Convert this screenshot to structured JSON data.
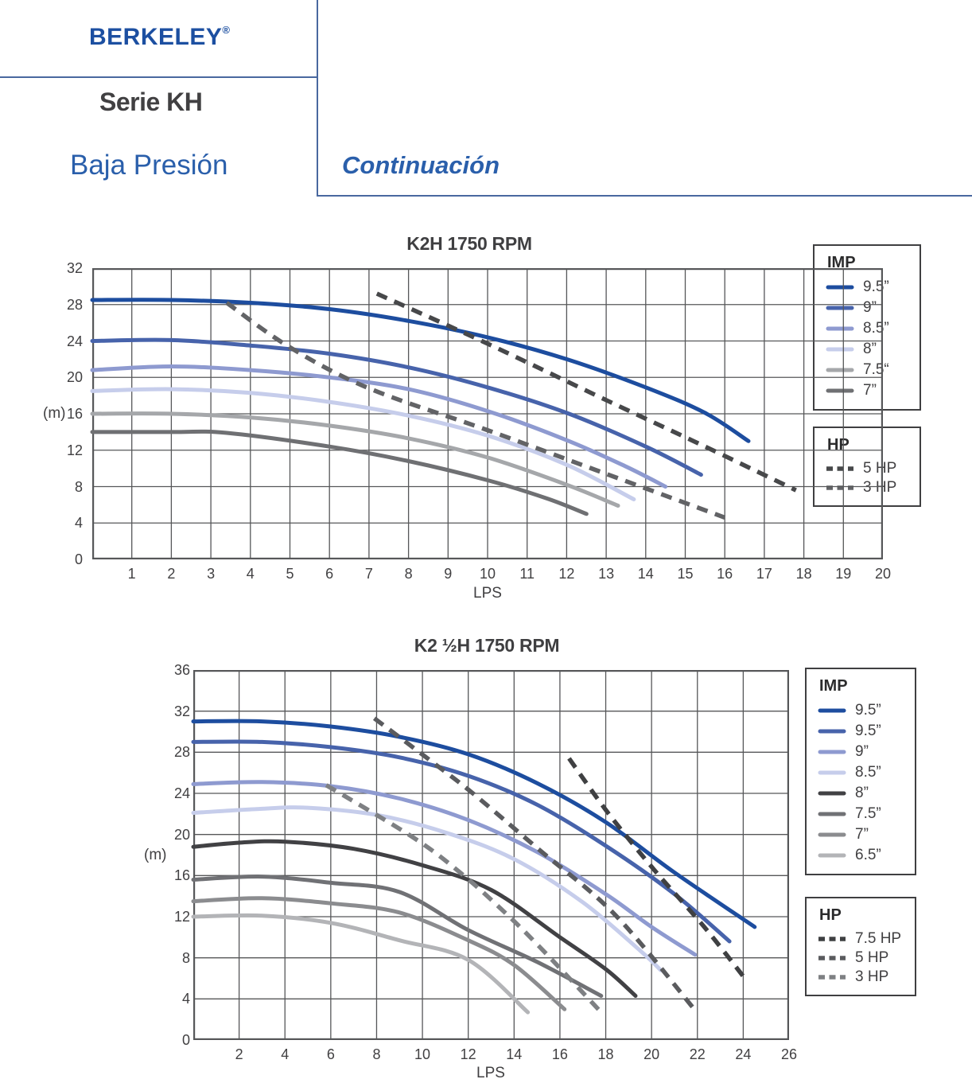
{
  "header": {
    "brand": "BERKELEY",
    "registered": "®",
    "series": "Serie KH",
    "subtitle": "Baja Presión",
    "continuation": "Continuación",
    "brand_color": "#1c4fa1",
    "rule_color": "#49689f"
  },
  "chart_data": [
    {
      "type": "line",
      "title": "K2H 1750 RPM",
      "xlabel": "LPS",
      "ylabel": "(m)",
      "xlim": [
        0,
        20
      ],
      "ylim": [
        0,
        32
      ],
      "x_ticks": [
        1,
        2,
        3,
        4,
        5,
        6,
        7,
        8,
        9,
        10,
        11,
        12,
        13,
        14,
        15,
        16,
        17,
        18,
        19,
        20
      ],
      "y_ticks": [
        0,
        4,
        8,
        12,
        16,
        20,
        24,
        28,
        32
      ],
      "y_grid_step": 4,
      "grid": true,
      "legend_imp_title": "IMP",
      "legend_hp_title": "HP",
      "legend_position": "right",
      "series": [
        {
          "name": "9.5”",
          "legend": "imp",
          "color": "#1d4d9f",
          "dashed": false,
          "points": [
            [
              0,
              28.5
            ],
            [
              2,
              28.5
            ],
            [
              4,
              28.2
            ],
            [
              6,
              27.5
            ],
            [
              8,
              26.2
            ],
            [
              10,
              24.4
            ],
            [
              12,
              22.0
            ],
            [
              14,
              18.9
            ],
            [
              15.5,
              16.1
            ],
            [
              16.6,
              13.0
            ]
          ]
        },
        {
          "name": "9”",
          "legend": "imp",
          "color": "#4763ab",
          "dashed": false,
          "points": [
            [
              0,
              24.0
            ],
            [
              2,
              24.1
            ],
            [
              4,
              23.5
            ],
            [
              6,
              22.6
            ],
            [
              8,
              21.1
            ],
            [
              10,
              18.9
            ],
            [
              12,
              16.1
            ],
            [
              14,
              12.4
            ],
            [
              15.4,
              9.3
            ]
          ]
        },
        {
          "name": "8.5”",
          "legend": "imp",
          "color": "#8e9ad0",
          "dashed": false,
          "points": [
            [
              0,
              20.8
            ],
            [
              2,
              21.2
            ],
            [
              4,
              20.8
            ],
            [
              6,
              20.0
            ],
            [
              8,
              18.7
            ],
            [
              10,
              16.3
            ],
            [
              12,
              13.1
            ],
            [
              13.5,
              10.2
            ],
            [
              14.5,
              8.0
            ]
          ]
        },
        {
          "name": "8”",
          "legend": "imp",
          "color": "#c6cdeb",
          "dashed": false,
          "points": [
            [
              0,
              18.5
            ],
            [
              2,
              18.7
            ],
            [
              4,
              18.3
            ],
            [
              6,
              17.3
            ],
            [
              8,
              15.8
            ],
            [
              10,
              13.6
            ],
            [
              12,
              10.4
            ],
            [
              13.7,
              6.6
            ]
          ]
        },
        {
          "name": "7.5“",
          "legend": "imp",
          "color": "#a5a7aa",
          "dashed": false,
          "points": [
            [
              0,
              16.0
            ],
            [
              2,
              16.0
            ],
            [
              4,
              15.6
            ],
            [
              6,
              14.7
            ],
            [
              8,
              13.3
            ],
            [
              10,
              11.2
            ],
            [
              12,
              8.2
            ],
            [
              13.3,
              5.9
            ]
          ]
        },
        {
          "name": "7”",
          "legend": "imp",
          "color": "#6f7073",
          "dashed": false,
          "points": [
            [
              0,
              14.0
            ],
            [
              2,
              14.0
            ],
            [
              3.4,
              13.9
            ],
            [
              6,
              12.4
            ],
            [
              8,
              10.8
            ],
            [
              10,
              8.7
            ],
            [
              11.5,
              6.7
            ],
            [
              12.5,
              5.0
            ]
          ]
        },
        {
          "name": "5 HP",
          "legend": "hp",
          "color": "#47484a",
          "dashed": true,
          "points": [
            [
              7.2,
              29.2
            ],
            [
              10,
              23.7
            ],
            [
              13,
              17.5
            ],
            [
              15.5,
              12.4
            ],
            [
              17.8,
              7.6
            ]
          ]
        },
        {
          "name": "3 HP",
          "legend": "hp",
          "color": "#626366",
          "dashed": true,
          "points": [
            [
              3.4,
              28.2
            ],
            [
              5,
              23.3
            ],
            [
              7,
              18.8
            ],
            [
              10,
              14.2
            ],
            [
              13,
              9.4
            ],
            [
              16,
              4.6
            ]
          ]
        }
      ]
    },
    {
      "type": "line",
      "title": "K2 ½H 1750 RPM",
      "xlabel": "LPS",
      "ylabel": "(m)",
      "xlim": [
        0,
        26
      ],
      "ylim": [
        0,
        36
      ],
      "x_ticks": [
        2,
        4,
        6,
        8,
        10,
        12,
        14,
        16,
        18,
        20,
        22,
        24,
        26
      ],
      "y_ticks": [
        0,
        4,
        8,
        12,
        16,
        20,
        24,
        28,
        32,
        36
      ],
      "y_grid_step": 4,
      "grid": true,
      "legend_imp_title": "IMP",
      "legend_hp_title": "HP",
      "legend_position": "right",
      "series": [
        {
          "name": "9.5”",
          "legend": "imp",
          "color": "#1d4d9f",
          "dashed": false,
          "points": [
            [
              0,
              31.0
            ],
            [
              3,
              31.0
            ],
            [
              6,
              30.5
            ],
            [
              9,
              29.5
            ],
            [
              12,
              27.8
            ],
            [
              15,
              25.0
            ],
            [
              18,
              21.2
            ],
            [
              21,
              16.3
            ],
            [
              24.5,
              11.0
            ]
          ]
        },
        {
          "name": "9.5”",
          "legend": "imp",
          "color": "#4763ab",
          "dashed": false,
          "points": [
            [
              0,
              29.0
            ],
            [
              3,
              29.0
            ],
            [
              6,
              28.5
            ],
            [
              9,
              27.5
            ],
            [
              12,
              25.7
            ],
            [
              15,
              22.9
            ],
            [
              18,
              18.9
            ],
            [
              21,
              14.2
            ],
            [
              23.4,
              9.6
            ]
          ]
        },
        {
          "name": "9”",
          "legend": "imp",
          "color": "#8e9ad0",
          "dashed": false,
          "points": [
            [
              0,
              24.9
            ],
            [
              3,
              25.1
            ],
            [
              6,
              24.7
            ],
            [
              9,
              23.5
            ],
            [
              12,
              21.4
            ],
            [
              15,
              18.3
            ],
            [
              18,
              14.2
            ],
            [
              20,
              11.0
            ],
            [
              21.9,
              8.3
            ]
          ]
        },
        {
          "name": "8.5”",
          "legend": "imp",
          "color": "#c6cdeb",
          "dashed": false,
          "points": [
            [
              0,
              22.1
            ],
            [
              3,
              22.5
            ],
            [
              5,
              22.6
            ],
            [
              8,
              21.9
            ],
            [
              11,
              20.2
            ],
            [
              14,
              17.6
            ],
            [
              17,
              13.4
            ],
            [
              19.5,
              8.7
            ],
            [
              20.4,
              6.8
            ]
          ]
        },
        {
          "name": "8”",
          "legend": "imp",
          "color": "#414144",
          "dashed": false,
          "points": [
            [
              0,
              18.8
            ],
            [
              2,
              19.2
            ],
            [
              4,
              19.3
            ],
            [
              7,
              18.6
            ],
            [
              10,
              17.0
            ],
            [
              13,
              14.6
            ],
            [
              16,
              10.0
            ],
            [
              18,
              6.9
            ],
            [
              19.3,
              4.3
            ]
          ]
        },
        {
          "name": "7.5”",
          "legend": "imp",
          "color": "#707175",
          "dashed": false,
          "points": [
            [
              0,
              15.6
            ],
            [
              3,
              15.9
            ],
            [
              6,
              15.3
            ],
            [
              9,
              14.4
            ],
            [
              12,
              10.7
            ],
            [
              15,
              7.6
            ],
            [
              17.8,
              4.3
            ]
          ]
        },
        {
          "name": "7”",
          "legend": "imp",
          "color": "#8b8c8f",
          "dashed": false,
          "points": [
            [
              0,
              13.5
            ],
            [
              3,
              13.8
            ],
            [
              6,
              13.3
            ],
            [
              9,
              12.4
            ],
            [
              12,
              9.7
            ],
            [
              14,
              7.3
            ],
            [
              16.2,
              3.0
            ]
          ]
        },
        {
          "name": "6.5”",
          "legend": "imp",
          "color": "#b3b4b7",
          "dashed": false,
          "points": [
            [
              0,
              12.0
            ],
            [
              3,
              12.1
            ],
            [
              6,
              11.4
            ],
            [
              9,
              9.7
            ],
            [
              12,
              7.8
            ],
            [
              14.6,
              2.7
            ]
          ]
        },
        {
          "name": "7.5 HP",
          "legend": "hp",
          "color": "#3f4042",
          "dashed": true,
          "points": [
            [
              16.4,
              27.4
            ],
            [
              18.1,
              22.1
            ],
            [
              20.1,
              16.6
            ],
            [
              22.3,
              11.0
            ],
            [
              24.0,
              6.2
            ]
          ]
        },
        {
          "name": "5 HP",
          "legend": "hp",
          "color": "#5a5b5e",
          "dashed": true,
          "points": [
            [
              7.9,
              31.3
            ],
            [
              10.4,
              27.1
            ],
            [
              12.2,
              24.0
            ],
            [
              15.0,
              18.7
            ],
            [
              18.4,
              12.2
            ],
            [
              21.9,
              2.9
            ]
          ]
        },
        {
          "name": "3 HP",
          "legend": "hp",
          "color": "#7e8083",
          "dashed": true,
          "points": [
            [
              5.8,
              24.8
            ],
            [
              9.6,
              19.7
            ],
            [
              11.7,
              16.2
            ],
            [
              13.6,
              12.4
            ],
            [
              15.1,
              9.1
            ],
            [
              17.8,
              2.7
            ]
          ]
        }
      ]
    }
  ]
}
